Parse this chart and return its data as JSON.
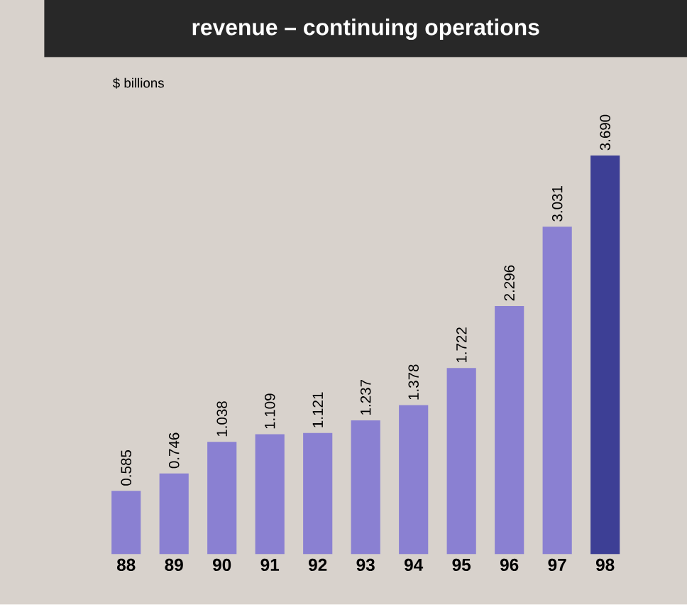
{
  "chart_data": {
    "type": "bar",
    "title": "revenue – continuing operations",
    "annotations": [
      "$ billions"
    ],
    "categories": [
      "88",
      "89",
      "90",
      "91",
      "92",
      "93",
      "94",
      "95",
      "96",
      "97",
      "98"
    ],
    "values": [
      0.585,
      0.746,
      1.038,
      1.109,
      1.121,
      1.237,
      1.378,
      1.722,
      2.296,
      3.031,
      3.69
    ],
    "value_labels": [
      "0.585",
      "0.746",
      "1.038",
      "1.109",
      "1.121",
      "1.237",
      "1.378",
      "1.722",
      "2.296",
      "3.031",
      "3.690"
    ],
    "colors": [
      "#8a80d2",
      "#8a80d2",
      "#8a80d2",
      "#8a80d2",
      "#8a80d2",
      "#8a80d2",
      "#8a80d2",
      "#8a80d2",
      "#8a80d2",
      "#8a80d2",
      "#3d3f95"
    ]
  }
}
